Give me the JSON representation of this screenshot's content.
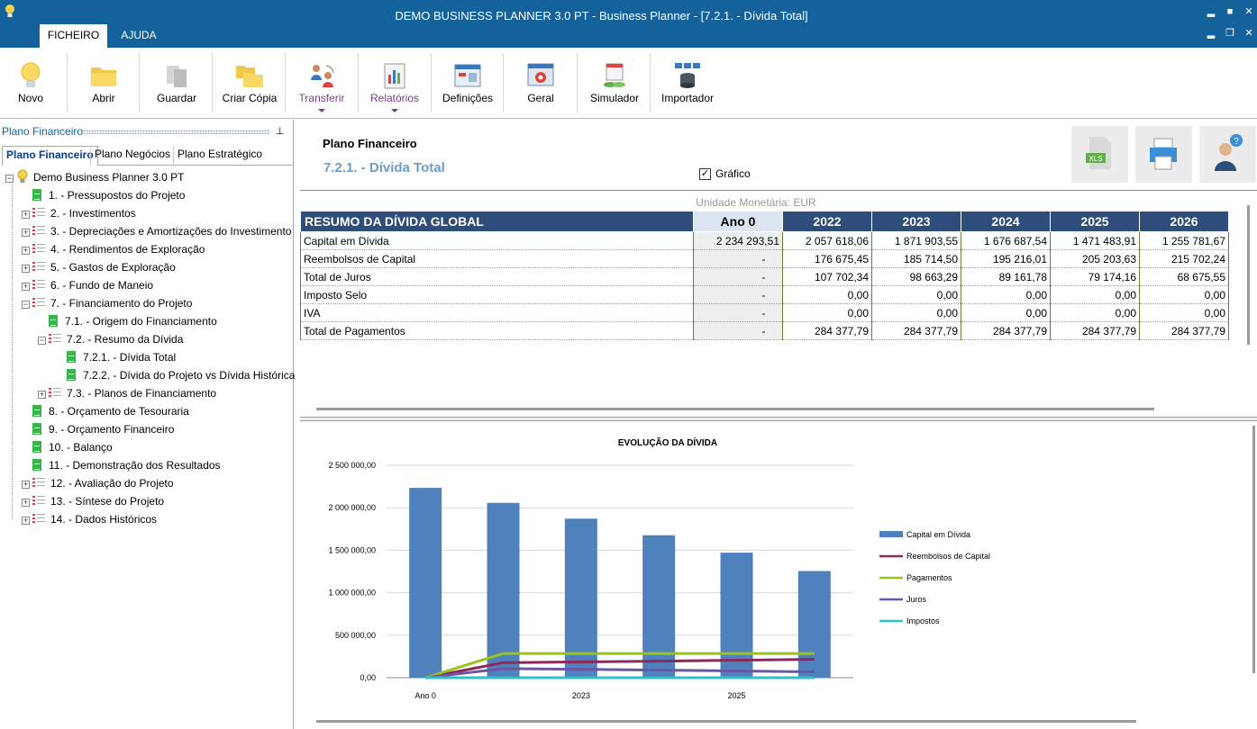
{
  "window": {
    "title": "DEMO BUSINESS PLANNER 3.0 PT - Business Planner - [7.2.1. - Dívida Total]",
    "min": "▂",
    "max": "■",
    "close": "✕",
    "restore": "❐"
  },
  "menu": {
    "tabs": [
      "FICHEIRO",
      "AJUDA"
    ]
  },
  "ribbon": {
    "buttons": [
      "Novo",
      "Abrir",
      "Guardar",
      "Criar Cópia",
      "Transferir",
      "Relatórios",
      "Definições",
      "Geral",
      "Simulador",
      "Importador"
    ]
  },
  "left_pane": {
    "title": "Plano Financeiro",
    "pin": "⊥",
    "tabs": [
      "Plano Financeiro",
      "Plano Negócios",
      "Plano Estratégico"
    ],
    "tree": [
      {
        "label": "Demo Business Planner 3.0 PT",
        "level": 0,
        "icon": "bulb-icon",
        "exp": "−"
      },
      {
        "label": "1. - Pressupostos do Projeto",
        "level": 1,
        "icon": "doc-icon"
      },
      {
        "label": "2. - Investimentos",
        "level": 1,
        "icon": "list-icon",
        "exp": "+"
      },
      {
        "label": "3. - Depreciações e Amortizações do Investimento",
        "level": 1,
        "icon": "list-icon",
        "exp": "+"
      },
      {
        "label": "4. - Rendimentos de Exploração",
        "level": 1,
        "icon": "list-icon",
        "exp": "+"
      },
      {
        "label": "5. - Gastos de Exploração",
        "level": 1,
        "icon": "list-icon",
        "exp": "+"
      },
      {
        "label": "6. - Fundo de Maneio",
        "level": 1,
        "icon": "list-icon",
        "exp": "+"
      },
      {
        "label": "7. - Financiamento do Projeto",
        "level": 1,
        "icon": "list-icon",
        "exp": "−"
      },
      {
        "label": "7.1. - Origem do Financiamento",
        "level": 2,
        "icon": "doc-icon"
      },
      {
        "label": "7.2. - Resumo da Dívida",
        "level": 2,
        "icon": "list-icon",
        "exp": "−"
      },
      {
        "label": "7.2.1. - Dívida Total",
        "level": 3,
        "icon": "doc-icon"
      },
      {
        "label": "7.2.2. - Dívida do Projeto vs Dívida Histórica",
        "level": 3,
        "icon": "doc-icon"
      },
      {
        "label": "7.3. - Planos de Financiamento",
        "level": 2,
        "icon": "list-icon",
        "exp": "+"
      },
      {
        "label": "8. - Orçamento de Tesouraria",
        "level": 1,
        "icon": "doc-icon"
      },
      {
        "label": "9. - Orçamento Financeiro",
        "level": 1,
        "icon": "doc-icon"
      },
      {
        "label": "10. - Balanço",
        "level": 1,
        "icon": "doc-icon"
      },
      {
        "label": "11. - Demonstração dos Resultados",
        "level": 1,
        "icon": "doc-icon"
      },
      {
        "label": "12. - Avaliação do Projeto",
        "level": 1,
        "icon": "list-icon",
        "exp": "+"
      },
      {
        "label": "13. - Síntese do Projeto",
        "level": 1,
        "icon": "list-icon",
        "exp": "+"
      },
      {
        "label": "14. - Dados Históricos",
        "level": 1,
        "icon": "list-icon",
        "exp": "+"
      }
    ]
  },
  "header": {
    "title": "Plano Financeiro",
    "subtitle": "7.2.1. - Dívida Total",
    "checkbox_label": "Gráfico",
    "checkbox_mark": "✓",
    "xls_label": "XLS"
  },
  "table": {
    "unit": "Unidade Monetária: EUR",
    "title": "RESUMO DA DÍVIDA GLOBAL",
    "columns": [
      "Ano 0",
      "2022",
      "2023",
      "2024",
      "2025",
      "2026"
    ],
    "rows": [
      {
        "label": "Capital em Dívida",
        "values": [
          "2 234 293,51",
          "2 057 618,06",
          "1 871 903,55",
          "1 676 687,54",
          "1 471 483,91",
          "1 255 781,67"
        ]
      },
      {
        "label": "Reembolsos de Capital",
        "values": [
          "-",
          "176 675,45",
          "185 714,50",
          "195 216,01",
          "205 203,63",
          "215 702,24"
        ]
      },
      {
        "label": "Total de Juros",
        "values": [
          "-",
          "107 702,34",
          "98 663,29",
          "89 161,78",
          "79 174,16",
          "68 675,55"
        ]
      },
      {
        "label": "Imposto Selo",
        "values": [
          "-",
          "0,00",
          "0,00",
          "0,00",
          "0,00",
          "0,00"
        ]
      },
      {
        "label": "IVA",
        "values": [
          "-",
          "0,00",
          "0,00",
          "0,00",
          "0,00",
          "0,00"
        ]
      },
      {
        "label": "Total de Pagamentos",
        "values": [
          "-",
          "284 377,79",
          "284 377,79",
          "284 377,79",
          "284 377,79",
          "284 377,79"
        ]
      }
    ]
  },
  "chart_data": {
    "type": "bar",
    "title": "EVOLUÇÃO DA DÍVIDA",
    "categories": [
      "Ano 0",
      "2022",
      "2023",
      "2024",
      "2025",
      "2026"
    ],
    "x_tick_labels": [
      "Ano 0",
      "",
      "2023",
      "",
      "2025",
      ""
    ],
    "ylim": [
      0,
      2500000
    ],
    "y_ticks": [
      0,
      500000,
      1000000,
      1500000,
      2000000,
      2500000
    ],
    "y_tick_labels": [
      "0,00",
      "500 000,00",
      "1 000 000,00",
      "1 500 000,00",
      "2 000 000,00",
      "2 500 000,00"
    ],
    "series": [
      {
        "name": "Capital em Dívida",
        "kind": "bar",
        "color": "#4f81bd",
        "values": [
          2234293.51,
          2057618.06,
          1871903.55,
          1676687.54,
          1471483.91,
          1255781.67
        ]
      },
      {
        "name": "Reembolsos de Capital",
        "kind": "line",
        "color": "#8b2a5a",
        "values": [
          0,
          176675.45,
          185714.5,
          195216.01,
          205203.63,
          215702.24
        ]
      },
      {
        "name": "Pagamentos",
        "kind": "line",
        "color": "#9ac31c",
        "values": [
          0,
          284377.79,
          284377.79,
          284377.79,
          284377.79,
          284377.79
        ]
      },
      {
        "name": "Juros",
        "kind": "line",
        "color": "#6a57a3",
        "values": [
          0,
          107702.34,
          98663.29,
          89161.78,
          79174.16,
          68675.55
        ]
      },
      {
        "name": "Impostos",
        "kind": "line",
        "color": "#2fc1c8",
        "values": [
          0,
          0,
          0,
          0,
          0,
          0
        ]
      }
    ]
  }
}
